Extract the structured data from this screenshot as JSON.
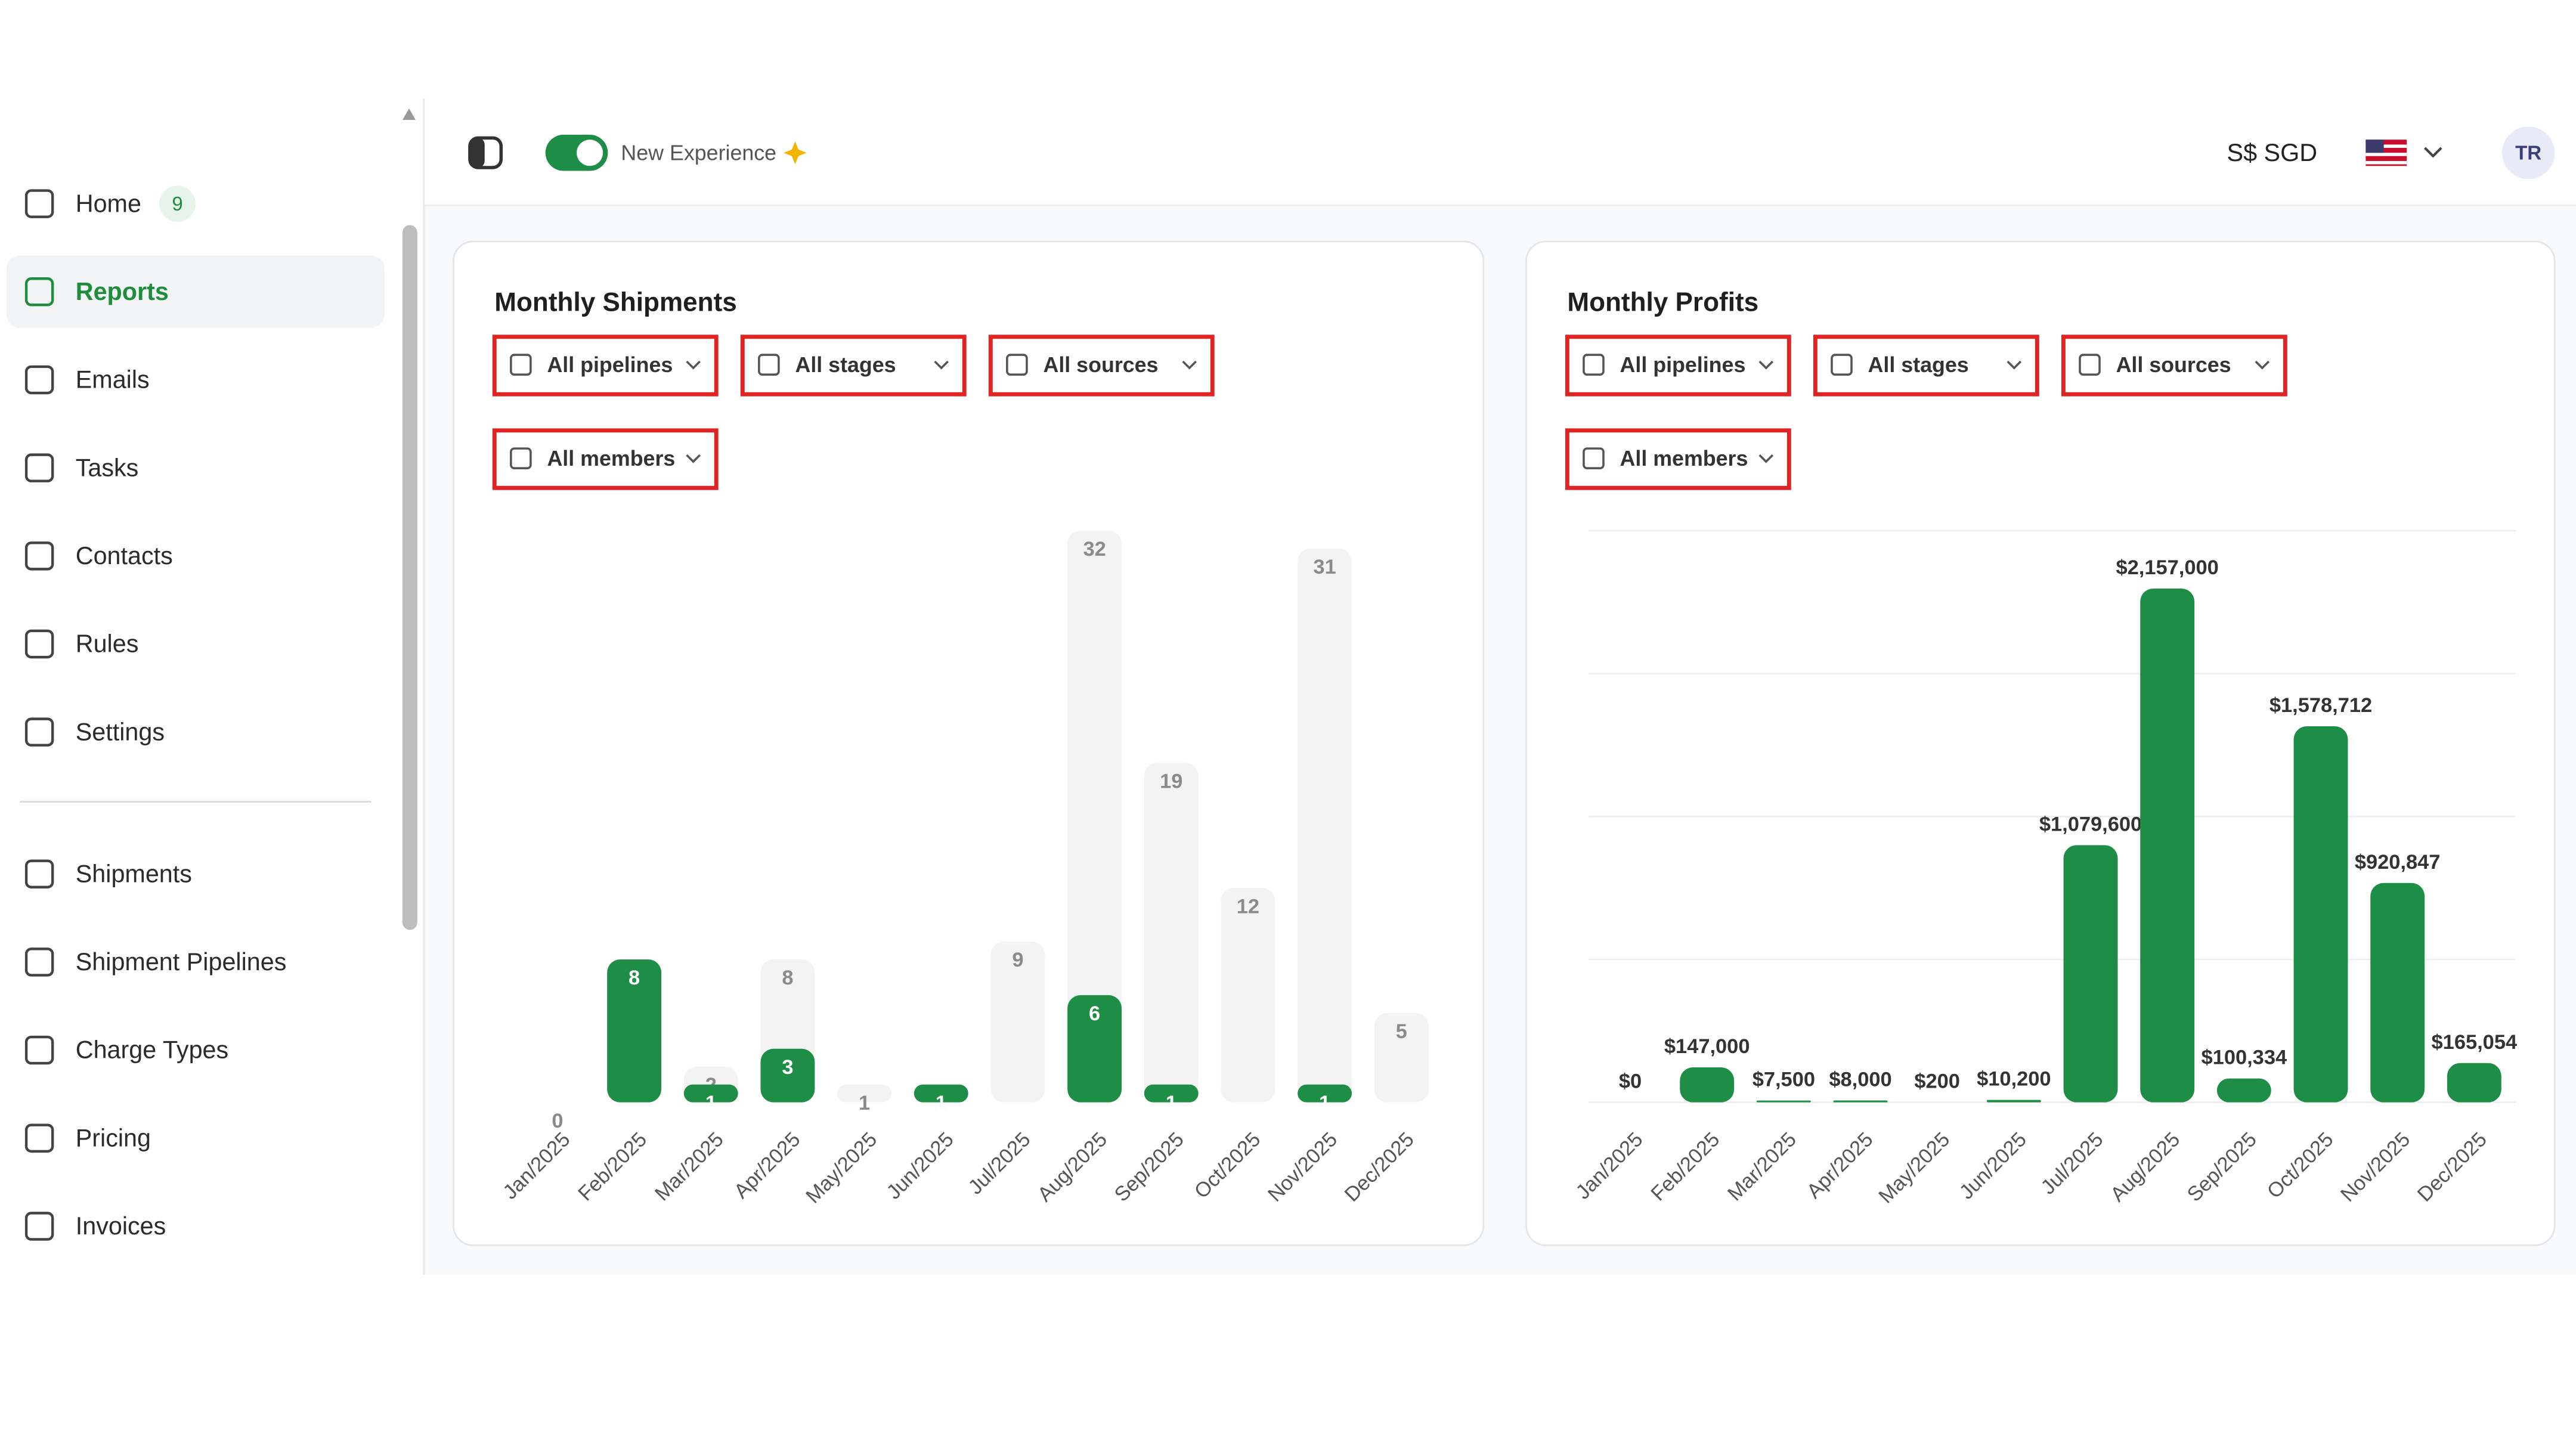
{
  "sidebar": {
    "sections": [
      [
        {
          "label": "Home",
          "badge": 9
        },
        {
          "label": "Reports",
          "active": true
        },
        {
          "label": "Emails"
        },
        {
          "label": "Tasks"
        },
        {
          "label": "Contacts"
        },
        {
          "label": "Rules"
        },
        {
          "label": "Settings"
        }
      ],
      [
        {
          "label": "Shipments"
        },
        {
          "label": "Shipment Pipelines"
        },
        {
          "label": "Charge Types"
        },
        {
          "label": "Pricing"
        },
        {
          "label": "Invoices"
        }
      ]
    ]
  },
  "header": {
    "toggle_label": "New Experience",
    "currency": "S$ SGD",
    "avatar": "TR"
  },
  "chart_data": [
    {
      "type": "bar",
      "title": "Monthly Shipments",
      "filters": [
        "All pipelines",
        "All stages",
        "All sources",
        "All members"
      ],
      "categories": [
        "Jan/2025",
        "Feb/2025",
        "Mar/2025",
        "Apr/2025",
        "May/2025",
        "Jun/2025",
        "Jul/2025",
        "Aug/2025",
        "Sep/2025",
        "Oct/2025",
        "Nov/2025",
        "Dec/2025"
      ],
      "series": [
        {
          "color": "#f3f3f3",
          "values": [
            0,
            8,
            2,
            8,
            1,
            1,
            9,
            32,
            19,
            12,
            31,
            5
          ]
        },
        {
          "color": "#1e8e47",
          "values": [
            0,
            8,
            1,
            3,
            0,
            1,
            0,
            6,
            1,
            0,
            1,
            0
          ]
        }
      ],
      "ylim": [
        0,
        32
      ],
      "grid": false
    },
    {
      "type": "bar",
      "title": "Monthly Profits",
      "filters": [
        "All pipelines",
        "All stages",
        "All sources",
        "All members"
      ],
      "categories": [
        "Jan/2025",
        "Feb/2025",
        "Mar/2025",
        "Apr/2025",
        "May/2025",
        "Jun/2025",
        "Jul/2025",
        "Aug/2025",
        "Sep/2025",
        "Oct/2025",
        "Nov/2025",
        "Dec/2025"
      ],
      "values": [
        0,
        147000,
        7500,
        8000,
        200,
        10200,
        1079600,
        2157000,
        100334,
        1578712,
        920847,
        165054
      ],
      "value_labels": [
        "$0",
        "$147,000",
        "$7,500",
        "$8,000",
        "$200",
        "$10,200",
        "$1,079,600",
        "$2,157,000",
        "$100,334",
        "$1,578,712",
        "$920,847",
        "$165,054"
      ],
      "color": "#1e8e47",
      "ylim": [
        0,
        2400000
      ],
      "yticks": [
        0,
        600000,
        1200000,
        1800000,
        2400000
      ],
      "grid": true
    }
  ]
}
